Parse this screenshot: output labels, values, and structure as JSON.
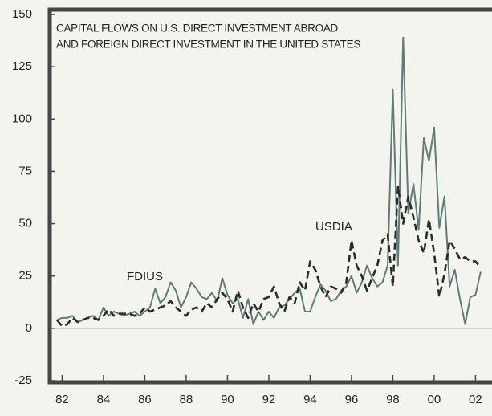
{
  "chart_data": {
    "type": "line",
    "title": [
      "CAPITAL FLOWS ON U.S. DIRECT INVESTMENT ABROAD",
      "AND FOREIGN DIRECT INVESTMENT IN THE UNITED STATES"
    ],
    "x": [
      1981.75,
      1982,
      1982.25,
      1982.5,
      1982.75,
      1983,
      1983.25,
      1983.5,
      1983.75,
      1984,
      1984.25,
      1984.5,
      1984.75,
      1985,
      1985.25,
      1985.5,
      1985.75,
      1986,
      1986.25,
      1986.5,
      1986.75,
      1987,
      1987.25,
      1987.5,
      1987.75,
      1988,
      1988.25,
      1988.5,
      1988.75,
      1989,
      1989.25,
      1989.5,
      1989.75,
      1990,
      1990.25,
      1990.5,
      1990.75,
      1991,
      1991.25,
      1991.5,
      1991.75,
      1992,
      1992.25,
      1992.5,
      1992.75,
      1993,
      1993.25,
      1993.5,
      1993.75,
      1994,
      1994.25,
      1994.5,
      1994.75,
      1995,
      1995.25,
      1995.5,
      1995.75,
      1996,
      1996.25,
      1996.5,
      1996.75,
      1997,
      1997.25,
      1997.5,
      1997.75,
      1998,
      1998.25,
      1998.5,
      1998.75,
      1999,
      1999.25,
      1999.5,
      1999.75,
      2000,
      2000.25,
      2000.5,
      2000.75,
      2001,
      2001.25,
      2001.5,
      2001.75,
      2002,
      2002.25
    ],
    "series": [
      {
        "name": "FDIUS",
        "color": "#5d7d78",
        "dashed": false,
        "values": [
          4,
          5,
          5,
          6,
          3,
          4,
          5,
          6,
          4,
          10,
          6,
          8,
          7,
          6,
          7,
          8,
          6,
          8,
          10,
          19,
          12,
          15,
          22,
          18,
          10,
          15,
          22,
          19,
          15,
          14,
          17,
          13,
          24,
          16,
          12,
          14,
          5,
          14,
          2,
          8,
          4,
          8,
          5,
          10,
          11,
          14,
          17,
          19,
          8,
          8,
          15,
          21,
          18,
          13,
          14,
          18,
          20,
          25,
          17,
          22,
          30,
          24,
          20,
          22,
          30,
          114,
          30,
          139,
          55,
          69,
          47,
          91,
          80,
          96,
          48,
          63,
          20,
          28,
          14,
          2,
          15,
          16,
          27
        ]
      },
      {
        "name": "USDIA",
        "color": "#2b2b2b",
        "dashed": true,
        "values": [
          4,
          1,
          2,
          5,
          3,
          4,
          5,
          5,
          4,
          6,
          9,
          6,
          7,
          7,
          7,
          6,
          7,
          10,
          8,
          9,
          10,
          11,
          13,
          10,
          8,
          6,
          9,
          10,
          8,
          12,
          10,
          14,
          17,
          14,
          8,
          18,
          10,
          5,
          12,
          8,
          14,
          15,
          20,
          12,
          8,
          15,
          12,
          22,
          18,
          32,
          28,
          20,
          15,
          20,
          19,
          17,
          22,
          42,
          30,
          25,
          18,
          24,
          30,
          42,
          45,
          20,
          68,
          50,
          63,
          53,
          42,
          36,
          52,
          36,
          15,
          26,
          42,
          38,
          33,
          34,
          32,
          32,
          29
        ]
      }
    ],
    "xlim": [
      1981.4,
      2002.8
    ],
    "xticks": [
      {
        "value": 1982,
        "label": "82"
      },
      {
        "value": 1984,
        "label": "84"
      },
      {
        "value": 1986,
        "label": "86"
      },
      {
        "value": 1988,
        "label": "88"
      },
      {
        "value": 1990,
        "label": "90"
      },
      {
        "value": 1992,
        "label": "92"
      },
      {
        "value": 1994,
        "label": "94"
      },
      {
        "value": 1996,
        "label": "96"
      },
      {
        "value": 1998,
        "label": "98"
      },
      {
        "value": 2000,
        "label": "00"
      },
      {
        "value": 2002,
        "label": "02"
      }
    ],
    "ylim": [
      -25,
      150
    ],
    "yticks": [
      -25,
      0,
      25,
      50,
      75,
      100,
      125,
      150
    ]
  }
}
